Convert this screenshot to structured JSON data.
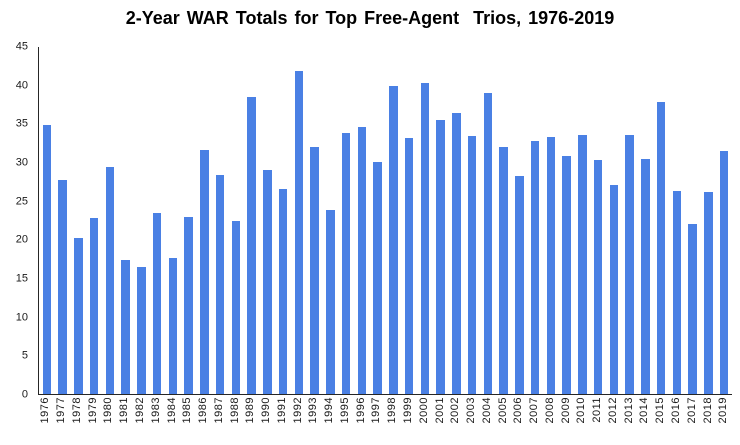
{
  "chart_data": {
    "type": "bar",
    "title": "2-Year WAR Totals for Top Free-Agent  Trios, 1976-2019",
    "categories": [
      "1976",
      "1977",
      "1978",
      "1979",
      "1980",
      "1981",
      "1982",
      "1983",
      "1984",
      "1985",
      "1986",
      "1987",
      "1988",
      "1989",
      "1990",
      "1991",
      "1992",
      "1993",
      "1994",
      "1995",
      "1996",
      "1997",
      "1998",
      "1999",
      "2000",
      "2001",
      "2002",
      "2003",
      "2004",
      "2005",
      "2006",
      "2007",
      "2008",
      "2009",
      "2010",
      "2011",
      "2012",
      "2013",
      "2014",
      "2015",
      "2016",
      "2017",
      "2018",
      "2019"
    ],
    "values": [
      34.9,
      27.8,
      20.2,
      22.8,
      29.4,
      17.4,
      16.5,
      23.5,
      17.7,
      22.9,
      31.7,
      28.4,
      22.4,
      38.5,
      29.0,
      26.6,
      41.9,
      32.0,
      23.8,
      33.9,
      34.6,
      30.1,
      40.0,
      33.2,
      40.3,
      35.6,
      36.5,
      33.5,
      39.0,
      32.0,
      28.3,
      32.8,
      33.3,
      30.9,
      33.6,
      30.3,
      27.1,
      33.6,
      30.5,
      37.9,
      26.3,
      22.0,
      26.2,
      31.5
    ],
    "xlabel": "",
    "ylabel": "",
    "ylim": [
      0,
      45
    ],
    "yticks": [
      0,
      5,
      10,
      15,
      20,
      25,
      30,
      35,
      40,
      45
    ],
    "bar_color": "#4a80e4",
    "axis_color": "#262626",
    "grid": "off",
    "legend": "none"
  }
}
